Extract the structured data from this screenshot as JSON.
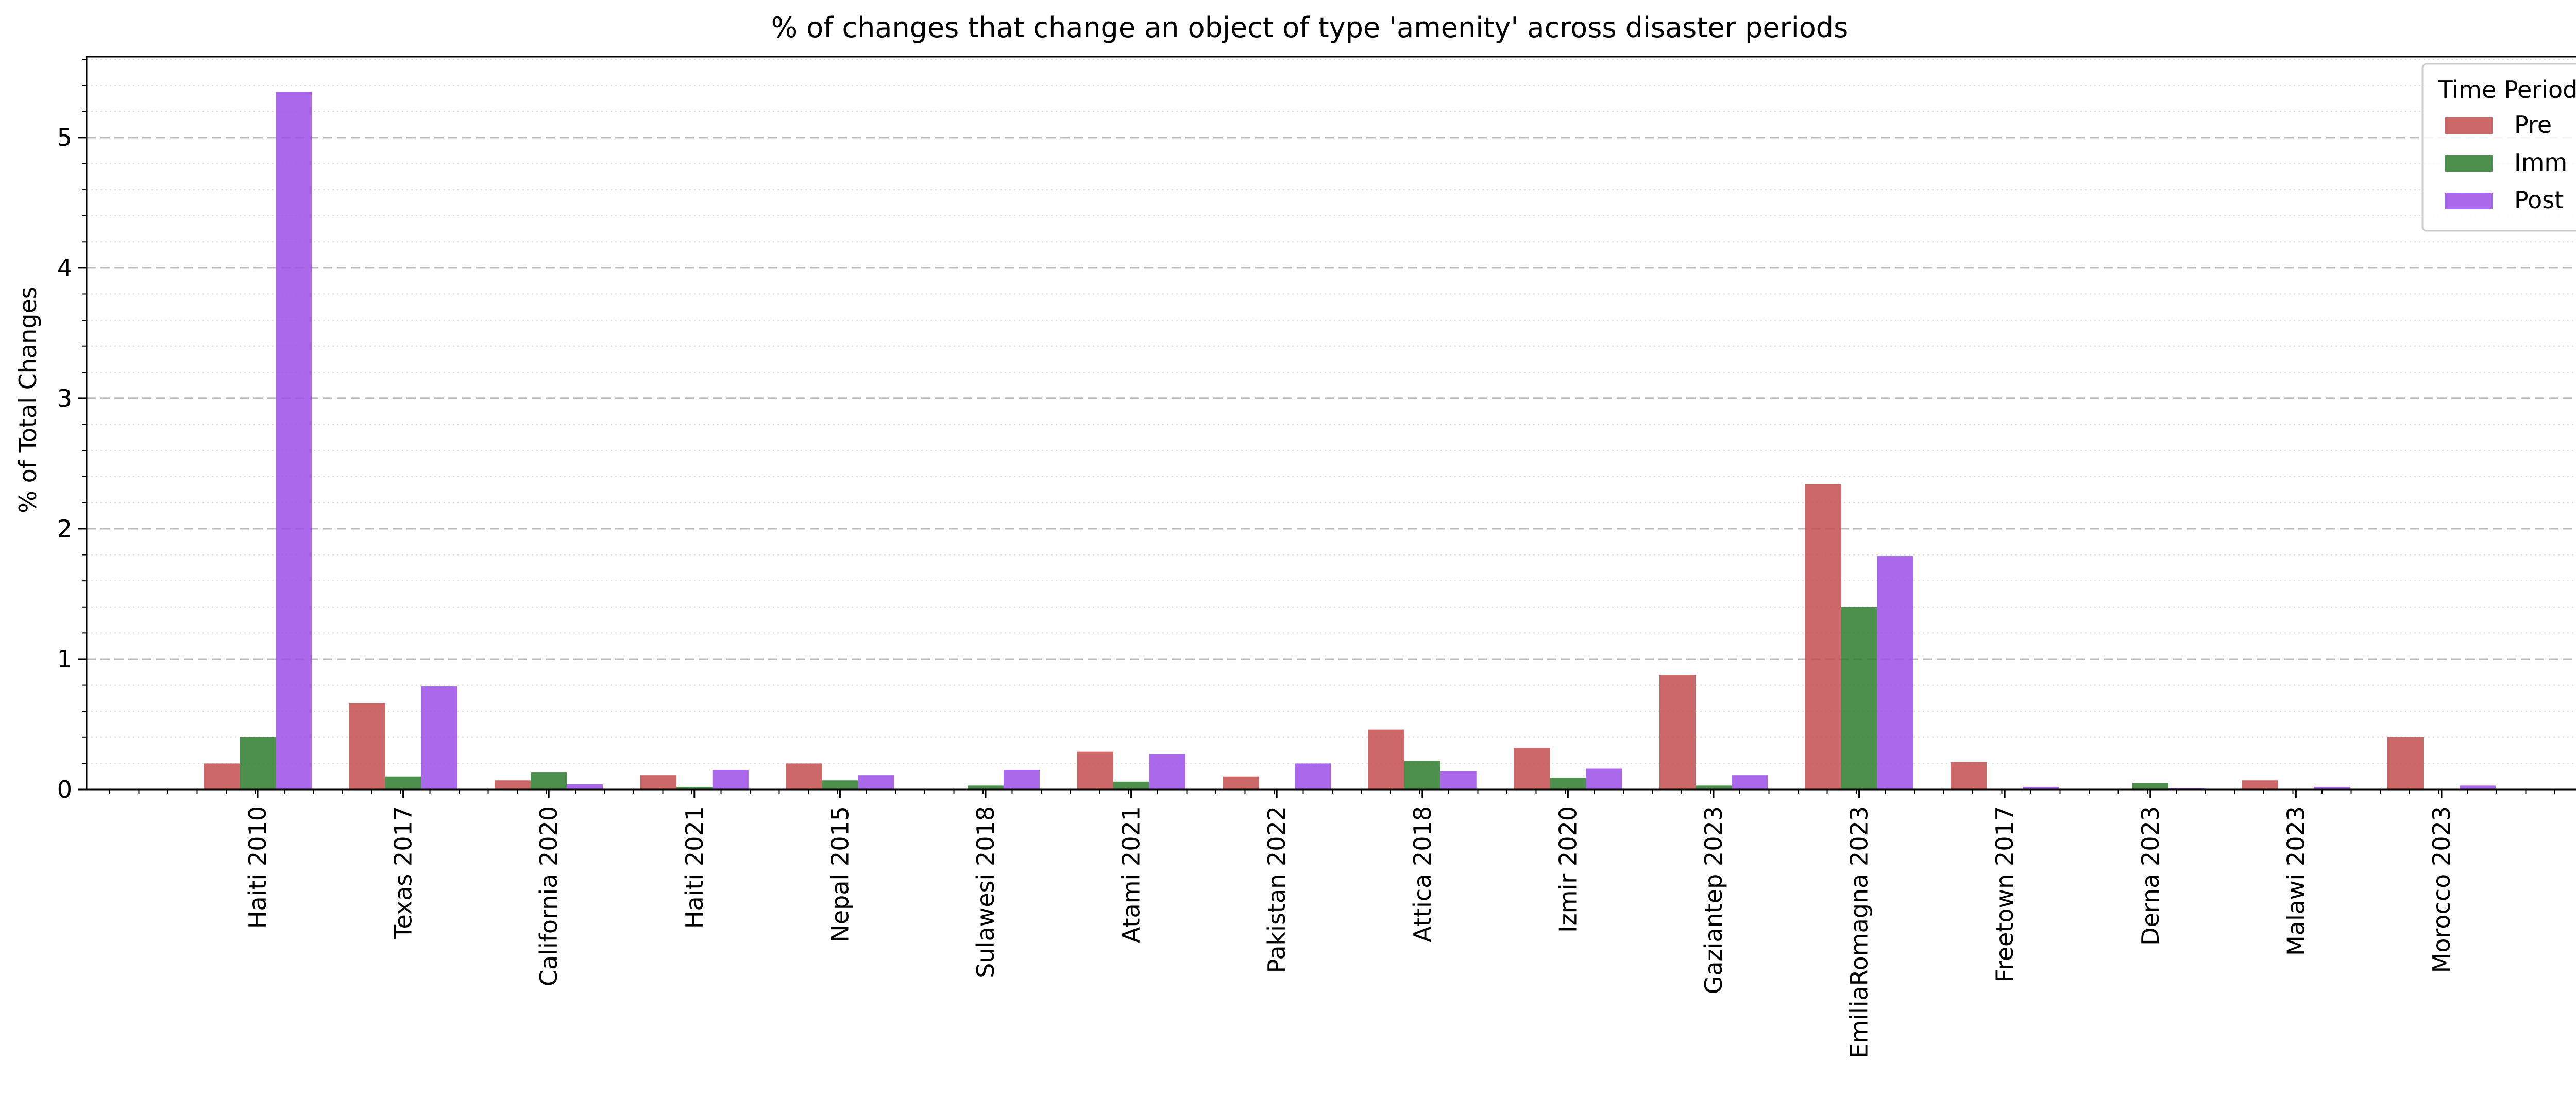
{
  "chart_data": {
    "type": "bar",
    "title": "% of changes that change an object of type 'amenity' across disaster periods",
    "xlabel": "",
    "ylabel": "% of Total Changes",
    "ylim": [
      0,
      5.62
    ],
    "yticks": [
      "0",
      "1",
      "2",
      "3",
      "4",
      "5"
    ],
    "grid": "horizontal dashed (major), dotted (minor)",
    "legend": {
      "title": "Time Period",
      "position": "top-right"
    },
    "categories": [
      "Haiti 2010",
      "Texas 2017",
      "California 2020",
      "Haiti 2021",
      "Nepal 2015",
      "Sulawesi 2018",
      "Atami 2021",
      "Pakistan 2022",
      "Attica 2018",
      "Izmir 2020",
      "Gaziantep 2023",
      "EmiliaRomagna 2023",
      "Freetown 2017",
      "Derna 2023",
      "Malawi 2023",
      "Morocco 2023"
    ],
    "series": [
      {
        "name": "Pre",
        "color": "#c44e4e",
        "values": [
          0.2,
          0.66,
          0.07,
          0.11,
          0.2,
          0.0,
          0.29,
          0.1,
          0.46,
          0.32,
          0.88,
          2.34,
          0.21,
          0.0,
          0.07,
          0.4
        ]
      },
      {
        "name": "Imm",
        "color": "#2e7d2e",
        "values": [
          0.4,
          0.1,
          0.13,
          0.02,
          0.07,
          0.03,
          0.06,
          0.0,
          0.22,
          0.09,
          0.03,
          1.4,
          0.0,
          0.05,
          0.0,
          0.0
        ]
      },
      {
        "name": "Post",
        "color": "#9b4de6",
        "values": [
          5.35,
          0.79,
          0.04,
          0.15,
          0.11,
          0.15,
          0.27,
          0.2,
          0.14,
          0.16,
          0.11,
          1.79,
          0.02,
          0.01,
          0.02,
          0.03
        ]
      }
    ]
  }
}
